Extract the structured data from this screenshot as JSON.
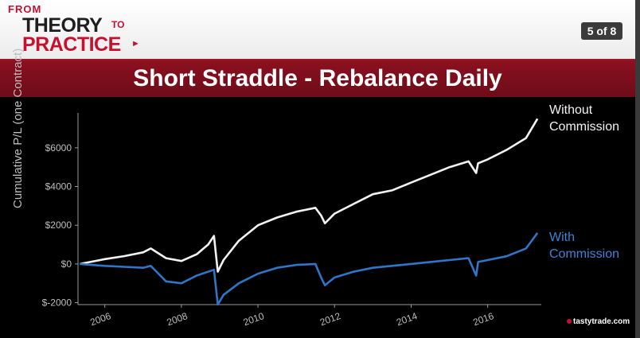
{
  "header": {
    "logo_from": "FROM",
    "logo_theory": "THEORY",
    "logo_to": "TO",
    "logo_practice": "PRACTICE",
    "page_indicator": "5 of 8",
    "title": "Short Straddle - Rebalance Daily"
  },
  "footer": {
    "brand": "tastytrade",
    "brand_suffix": ".com"
  },
  "colors": {
    "without_commission": "#f2f2f2",
    "with_commission": "#2f75c8",
    "band": "#7d0e1c",
    "accent": "#c8102e"
  },
  "chart_data": {
    "type": "line",
    "title": "Short Straddle - Rebalance Daily",
    "xlabel": "",
    "ylabel": "Cumulative P/L (one Contract)",
    "xlim": [
      2005.3,
      2017.4
    ],
    "ylim": [
      -2100,
      7800
    ],
    "x_ticks": [
      2006,
      2008,
      2010,
      2012,
      2014,
      2016
    ],
    "y_ticks": [
      -2000,
      0,
      2000,
      4000,
      6000
    ],
    "y_tick_labels": [
      "$-2000",
      "$0",
      "$2000",
      "$4000",
      "$6000"
    ],
    "grid": false,
    "legend": "right, labels at line ends",
    "series": [
      {
        "name": "Without Commission",
        "x": [
          2005.35,
          2006.0,
          2006.5,
          2007.0,
          2007.2,
          2007.6,
          2008.0,
          2008.4,
          2008.7,
          2008.85,
          2008.95,
          2009.1,
          2009.5,
          2010.0,
          2010.5,
          2011.0,
          2011.5,
          2011.65,
          2011.75,
          2012.0,
          2012.5,
          2013.0,
          2013.5,
          2014.0,
          2014.5,
          2015.0,
          2015.5,
          2015.7,
          2015.75,
          2016.0,
          2016.5,
          2017.0,
          2017.3
        ],
        "values": [
          0,
          250,
          400,
          600,
          800,
          300,
          150,
          500,
          1000,
          1450,
          -400,
          200,
          1200,
          2000,
          2400,
          2700,
          2900,
          2500,
          2100,
          2600,
          3100,
          3600,
          3800,
          4200,
          4600,
          5000,
          5300,
          4700,
          5200,
          5400,
          5900,
          6500,
          7500
        ]
      },
      {
        "name": "With Commission",
        "x": [
          2005.35,
          2006.0,
          2006.5,
          2007.0,
          2007.2,
          2007.6,
          2008.0,
          2008.4,
          2008.7,
          2008.85,
          2008.95,
          2009.1,
          2009.5,
          2010.0,
          2010.5,
          2011.0,
          2011.5,
          2011.65,
          2011.75,
          2012.0,
          2012.5,
          2013.0,
          2013.5,
          2014.0,
          2014.5,
          2015.0,
          2015.5,
          2015.7,
          2015.75,
          2016.0,
          2016.5,
          2017.0,
          2017.3
        ],
        "values": [
          0,
          -100,
          -150,
          -200,
          -100,
          -900,
          -1000,
          -600,
          -400,
          -300,
          -2100,
          -1600,
          -1000,
          -500,
          -200,
          -50,
          0,
          -700,
          -1100,
          -700,
          -400,
          -200,
          -100,
          0,
          100,
          200,
          300,
          -600,
          100,
          200,
          400,
          800,
          1600
        ]
      }
    ]
  }
}
